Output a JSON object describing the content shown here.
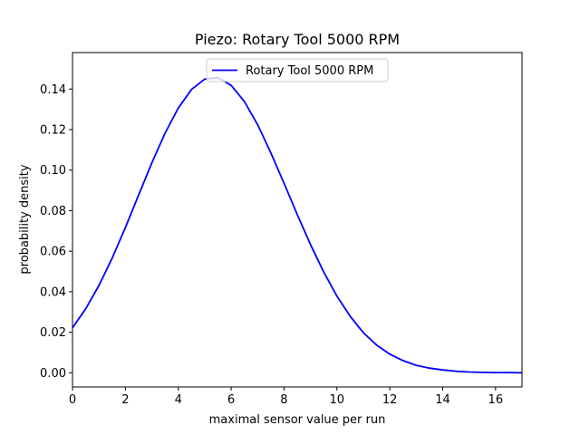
{
  "chart_data": {
    "type": "line",
    "title": "Piezo: Rotary Tool 5000 RPM",
    "xlabel": "maximal sensor value per run",
    "ylabel": "probability density",
    "xlim": [
      0,
      17
    ],
    "ylim": [
      -0.007,
      0.158
    ],
    "xticks": [
      "0",
      "2",
      "4",
      "6",
      "8",
      "10",
      "12",
      "14",
      "16"
    ],
    "yticks": [
      "0.00",
      "0.02",
      "0.04",
      "0.06",
      "0.08",
      "0.10",
      "0.12",
      "0.14"
    ],
    "grid": false,
    "legend_position": "upper center",
    "series": [
      {
        "name": "Rotary Tool 5000 RPM",
        "color": "#0000ff",
        "x": [
          0,
          0.5,
          1,
          1.5,
          2,
          2.5,
          3,
          3.5,
          4,
          4.5,
          5,
          5.5,
          6,
          6.5,
          7,
          7.5,
          8,
          8.5,
          9,
          9.5,
          10,
          10.5,
          11,
          11.5,
          12,
          12.5,
          13,
          13.5,
          14,
          14.5,
          15,
          15.5,
          16,
          16.5,
          17
        ],
        "y": [
          0.0222,
          0.0316,
          0.0431,
          0.0566,
          0.0717,
          0.0876,
          0.1035,
          0.1182,
          0.1306,
          0.1398,
          0.1449,
          0.1456,
          0.1418,
          0.1339,
          0.1225,
          0.1086,
          0.0935,
          0.0781,
          0.0633,
          0.0497,
          0.0378,
          0.0279,
          0.0198,
          0.0137,
          0.0092,
          0.006,
          0.0037,
          0.0023,
          0.0014,
          0.0008,
          0.0004,
          0.0002,
          0.0001,
          0.0001,
          0.0
        ]
      }
    ]
  }
}
